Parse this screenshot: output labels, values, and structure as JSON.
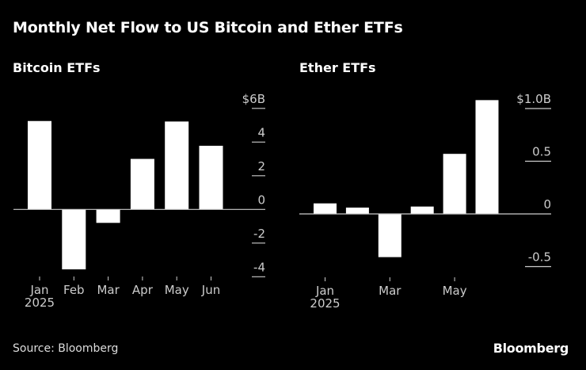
{
  "title": "Monthly Net Flow to US Bitcoin and Ether ETFs",
  "source": "Source: Bloomberg",
  "logo": "Bloomberg",
  "colors": {
    "background": "#000000",
    "bars": "#ffffff",
    "axis": "#cccccc"
  },
  "chart_data": [
    {
      "type": "bar",
      "title": "Bitcoin ETFs",
      "categories": [
        "Jan",
        "Feb",
        "Mar",
        "Apr",
        "May",
        "Jun"
      ],
      "x_tick_labels": [
        "Jan",
        "Feb",
        "Mar",
        "Apr",
        "May",
        "Jun"
      ],
      "x_year_label": "2025",
      "values": [
        5.25,
        -3.56,
        -0.8,
        3.0,
        5.22,
        3.78
      ],
      "ylim": [
        -4,
        6
      ],
      "y_ticks": [
        6,
        4,
        2,
        0,
        -2,
        -4
      ],
      "y_tick_labels": [
        "$6B",
        "4",
        "2",
        "0",
        "-2",
        "-4"
      ],
      "axis_position": "right",
      "grid": false
    },
    {
      "type": "bar",
      "title": "Ether ETFs",
      "categories": [
        "Jan",
        "Feb",
        "Mar",
        "Apr",
        "May",
        "Jun"
      ],
      "x_tick_labels": [
        "Jan",
        "",
        "Mar",
        "",
        "May",
        ""
      ],
      "x_year_label": "2025",
      "values": [
        0.1,
        0.06,
        -0.41,
        0.07,
        0.57,
        1.08
      ],
      "ylim": [
        -0.5,
        1.0
      ],
      "y_ticks": [
        1.0,
        0.5,
        0,
        -0.5
      ],
      "y_tick_labels": [
        "$1.0B",
        "0.5",
        "0",
        "-0.5"
      ],
      "axis_position": "right",
      "grid": false
    }
  ]
}
